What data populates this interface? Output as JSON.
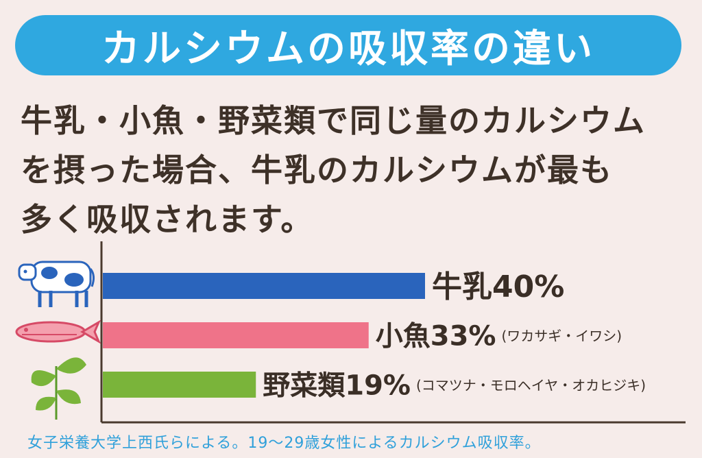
{
  "title": "カルシウムの吸収率の違い",
  "description": [
    "牛乳・小魚・野菜類で同じ量のカルシウム",
    "を摂った場合、牛乳のカルシウムが最も",
    "多く吸収されます。"
  ],
  "footnote": "女子栄養大学上西氏らによる。19〜29歳女性によるカルシウム吸収率。",
  "colors": {
    "title_bg": "#2fa8e0",
    "milk": "#2a64bc",
    "fish": "#ef7389",
    "vegetables": "#7ab43a",
    "text": "#3a2e26",
    "footnote": "#2fa0da"
  },
  "chart_data": {
    "type": "bar",
    "orientation": "horizontal",
    "categories": [
      "牛乳",
      "小魚",
      "野菜類"
    ],
    "values": [
      40,
      33,
      19
    ],
    "value_labels": [
      "40%",
      "33%",
      "19%"
    ],
    "notes": [
      "",
      "(ワカサギ・イワシ)",
      "(コマツナ・モロヘイヤ・オカヒジキ)"
    ],
    "icons": [
      "cow-icon",
      "fish-icon",
      "leaf-icon"
    ],
    "xlim": [
      0,
      40
    ],
    "grid": false
  }
}
